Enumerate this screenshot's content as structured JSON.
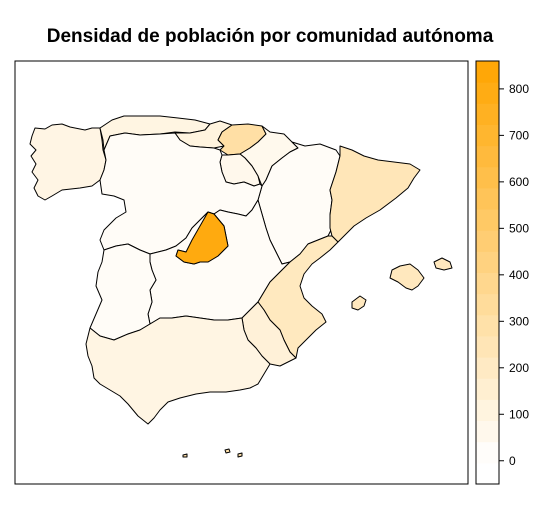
{
  "title": "Densidad de población por comunidad autónoma",
  "palette": {
    "low": "#FFFFFF",
    "high": "#FFA500",
    "border": "#000000"
  },
  "legend": {
    "min": -50,
    "max": 860,
    "ticks": [
      "0",
      "100",
      "200",
      "300",
      "400",
      "500",
      "600",
      "700",
      "800"
    ],
    "tick_values": [
      0,
      100,
      200,
      300,
      400,
      500,
      600,
      700,
      800
    ]
  },
  "chart_data": {
    "type": "choropleth",
    "title": "Densidad de población por comunidad autónoma",
    "scale_range": [
      0,
      860
    ],
    "regions": [
      {
        "id": "galicia",
        "value": 92
      },
      {
        "id": "asturias",
        "value": 98
      },
      {
        "id": "cantabria",
        "value": 109
      },
      {
        "id": "pais-vasco",
        "value": 305
      },
      {
        "id": "navarra",
        "value": 62
      },
      {
        "id": "la-rioja",
        "value": 63
      },
      {
        "id": "aragon",
        "value": 28
      },
      {
        "id": "cataluna",
        "value": 238
      },
      {
        "id": "castilla-leon",
        "value": 26
      },
      {
        "id": "madrid",
        "value": 810
      },
      {
        "id": "castilla-la-mancha",
        "value": 26
      },
      {
        "id": "extremadura",
        "value": 26
      },
      {
        "id": "valencia",
        "value": 215
      },
      {
        "id": "murcia",
        "value": 130
      },
      {
        "id": "andalucia",
        "value": 96
      },
      {
        "id": "baleares",
        "value": 220
      },
      {
        "id": "canarias",
        "value": 285
      }
    ]
  }
}
